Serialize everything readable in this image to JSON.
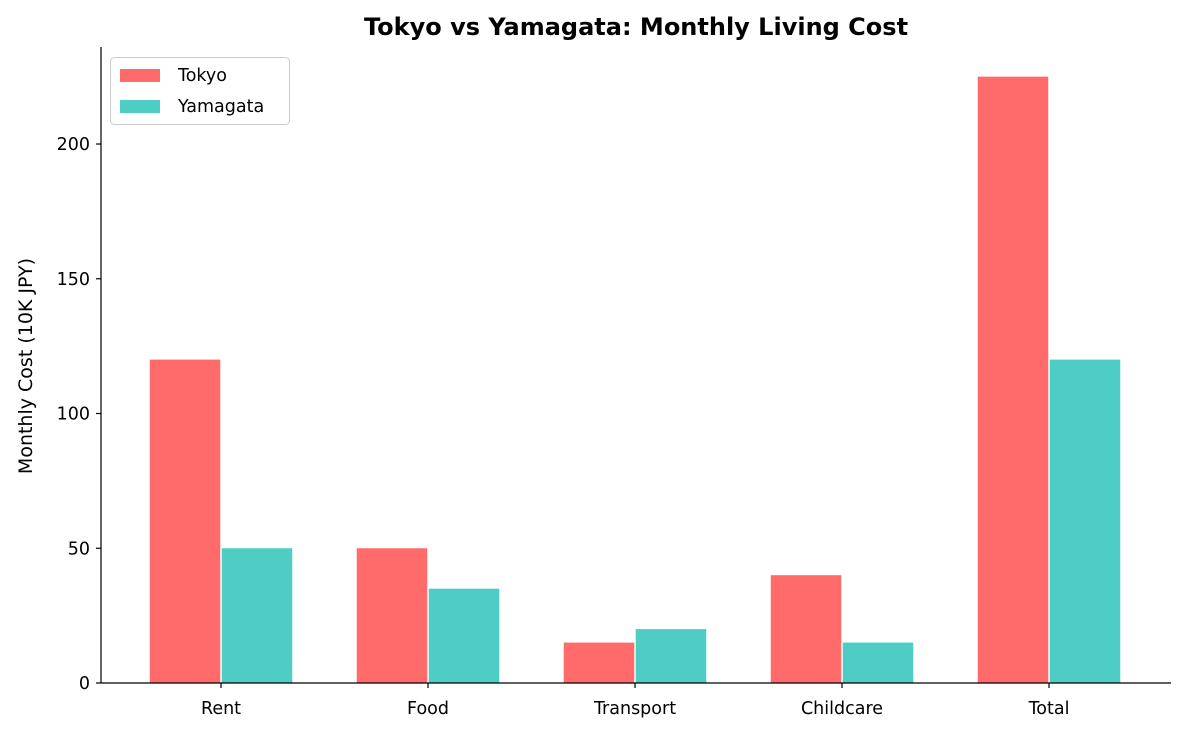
{
  "chart_data": {
    "type": "bar",
    "title": "Tokyo vs Yamagata: Monthly Living Cost",
    "xlabel": "",
    "ylabel": "Monthly Cost (10K JPY)",
    "categories": [
      "Rent",
      "Food",
      "Transport",
      "Childcare",
      "Total"
    ],
    "series": [
      {
        "name": "Tokyo",
        "color": "#ff6b6b",
        "values": [
          120,
          50,
          15,
          40,
          225
        ]
      },
      {
        "name": "Yamagata",
        "color": "#4ecdc4",
        "values": [
          50,
          35,
          20,
          15,
          120
        ]
      }
    ],
    "ylim": [
      0,
      236
    ],
    "yticks": [
      0,
      50,
      100,
      150,
      200
    ],
    "grid": false,
    "legend": "top-left"
  }
}
